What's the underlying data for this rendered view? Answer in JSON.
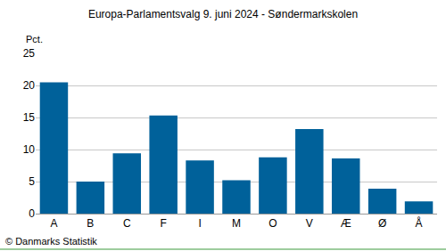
{
  "chart_data": {
    "type": "bar",
    "title": "Europa-Parlamentsvalg 9. juni 2024 - Søndermarkskolen",
    "ylabel": "Pct.",
    "source": "© Danmarks Statistik",
    "categories": [
      "A",
      "B",
      "C",
      "F",
      "I",
      "M",
      "O",
      "V",
      "Æ",
      "Ø",
      "Å"
    ],
    "values": [
      20.5,
      5.0,
      9.4,
      15.3,
      8.3,
      5.2,
      8.8,
      13.2,
      8.6,
      3.9,
      1.9
    ],
    "color": "#00619a",
    "ylim": [
      0,
      25
    ],
    "yticks": [
      0,
      5,
      10,
      15,
      20,
      25
    ],
    "grid": true
  }
}
